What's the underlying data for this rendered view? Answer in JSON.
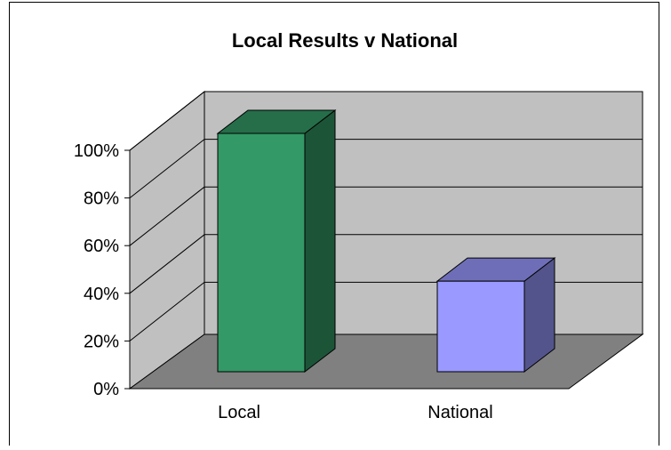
{
  "chart_data": {
    "type": "bar",
    "title": "Local Results v National",
    "categories": [
      "Local",
      "National"
    ],
    "values": [
      100,
      38
    ],
    "colors": [
      "#339966",
      "#9999ff"
    ],
    "ylim": [
      0,
      100
    ],
    "yticks": [
      "0%",
      "20%",
      "40%",
      "60%",
      "80%",
      "100%"
    ],
    "grid": true,
    "legend": "none",
    "style": "3d-column"
  }
}
